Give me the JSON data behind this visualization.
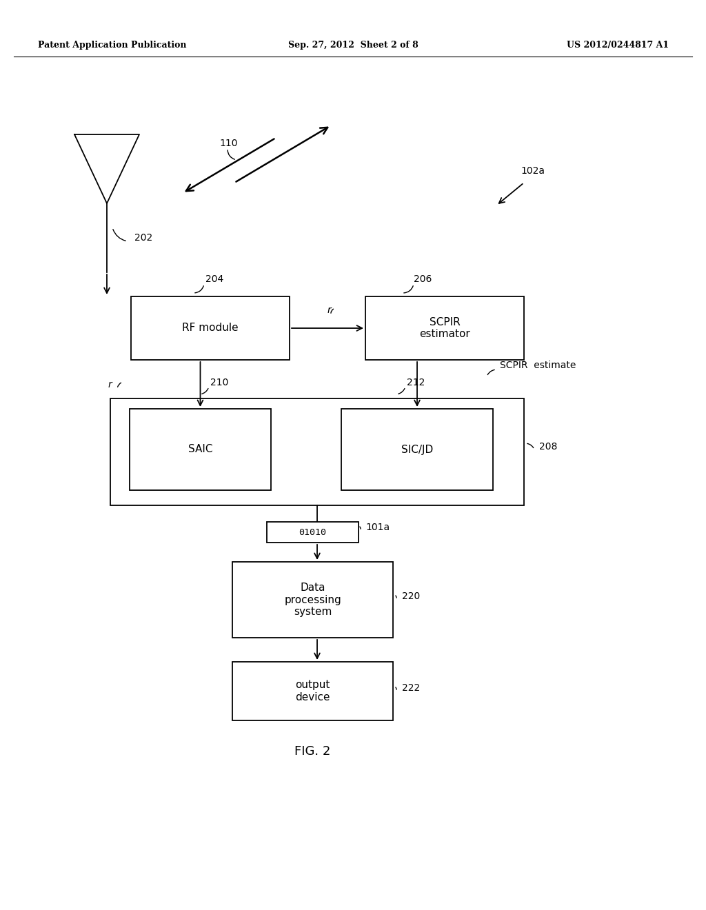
{
  "bg_color": "#ffffff",
  "header_left": "Patent Application Publication",
  "header_center": "Sep. 27, 2012  Sheet 2 of 8",
  "header_right": "US 2012/0244817 A1",
  "figure_label": "FIG. 2"
}
